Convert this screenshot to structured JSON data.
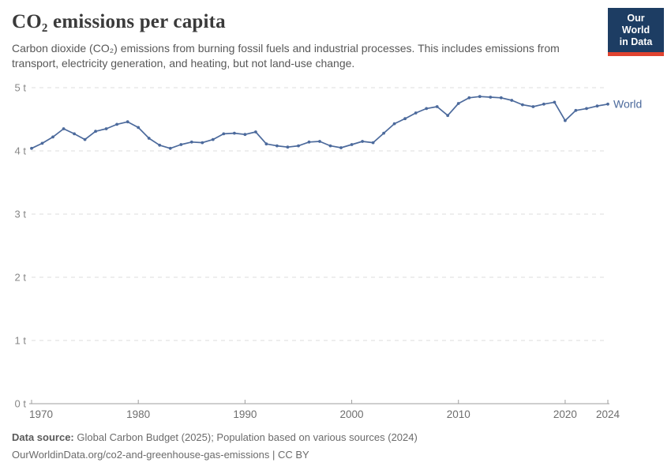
{
  "header": {
    "title": "CO₂ emissions per capita",
    "subtitle_line1": "Carbon dioxide (CO₂) emissions from burning fossil fuels and industrial processes. This includes emissions from",
    "subtitle_line2": "transport, electricity generation, and heating, but not land-use change.",
    "logo": {
      "line1": "Our World",
      "line2": "in Data",
      "bg_color": "#1D3D63",
      "accent_red": "#E0432F"
    }
  },
  "chart_data": {
    "type": "line",
    "title": "CO₂ emissions per capita",
    "unit": "t",
    "xlim": [
      1970,
      2024
    ],
    "ylim": [
      0,
      5
    ],
    "yticks": [
      0,
      1,
      2,
      3,
      4,
      5
    ],
    "ytick_labels": [
      "0 t",
      "1 t",
      "2 t",
      "3 t",
      "4 t",
      "5 t"
    ],
    "xticks": [
      1970,
      1980,
      1990,
      2000,
      2010,
      2020,
      2024
    ],
    "xtick_labels": [
      "1970",
      "1980",
      "1990",
      "2000",
      "2010",
      "2020",
      "2024"
    ],
    "grid": "horizontal-dashed",
    "legend_position": "end-of-line-label",
    "series": [
      {
        "name": "World",
        "color": "#4C6A9C",
        "x": [
          1970,
          1971,
          1972,
          1973,
          1974,
          1975,
          1976,
          1977,
          1978,
          1979,
          1980,
          1981,
          1982,
          1983,
          1984,
          1985,
          1986,
          1987,
          1988,
          1989,
          1990,
          1991,
          1992,
          1993,
          1994,
          1995,
          1996,
          1997,
          1998,
          1999,
          2000,
          2001,
          2002,
          2003,
          2004,
          2005,
          2006,
          2007,
          2008,
          2009,
          2010,
          2011,
          2012,
          2013,
          2014,
          2015,
          2016,
          2017,
          2018,
          2019,
          2020,
          2021,
          2022,
          2023,
          2024
        ],
        "values": [
          4.04,
          4.12,
          4.22,
          4.35,
          4.27,
          4.18,
          4.31,
          4.35,
          4.42,
          4.46,
          4.37,
          4.2,
          4.09,
          4.04,
          4.1,
          4.14,
          4.13,
          4.18,
          4.27,
          4.28,
          4.26,
          4.3,
          4.11,
          4.08,
          4.06,
          4.08,
          4.14,
          4.15,
          4.08,
          4.05,
          4.1,
          4.15,
          4.13,
          4.28,
          4.43,
          4.51,
          4.6,
          4.67,
          4.7,
          4.56,
          4.75,
          4.84,
          4.86,
          4.85,
          4.84,
          4.8,
          4.73,
          4.7,
          4.74,
          4.77,
          4.48,
          4.64,
          4.67,
          4.71,
          4.74
        ]
      }
    ],
    "colors": {
      "line": "#4C6A9C",
      "gridline": "#dcdcdc",
      "axis": "#9e9e9e",
      "ytick_text": "#878787",
      "xtick_text": "#6e6e6e"
    }
  },
  "footer": {
    "data_source_label": "Data source:",
    "data_source_text": "Global Carbon Budget (2025); Population based on various sources (2024)",
    "link_text": "OurWorldinData.org/co2-and-greenhouse-gas-emissions | CC BY"
  }
}
